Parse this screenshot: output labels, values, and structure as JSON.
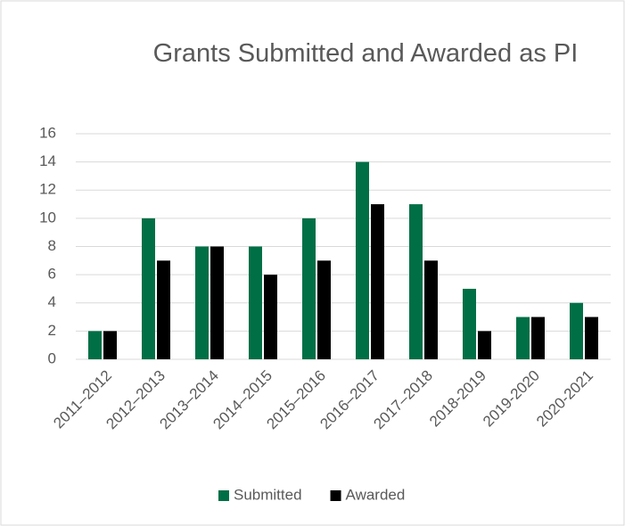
{
  "chart_data": {
    "type": "bar",
    "title": "Grants Submitted and Awarded as PI",
    "categories": [
      "2011–2012",
      "2012–2013",
      "2013–2014",
      "2014–2015",
      "2015–2016",
      "2016–2017",
      "2017–2018",
      "2018-2019",
      "2019-2020",
      "2020-2021"
    ],
    "series": [
      {
        "name": "Submitted",
        "color": "#006f46",
        "values": [
          2,
          10,
          8,
          8,
          10,
          14,
          11,
          5,
          3,
          4
        ]
      },
      {
        "name": "Awarded",
        "color": "#000000",
        "values": [
          2,
          7,
          8,
          6,
          7,
          11,
          7,
          2,
          3,
          3
        ]
      }
    ],
    "ylim": [
      0,
      16
    ],
    "yticks": [
      0,
      2,
      4,
      6,
      8,
      10,
      12,
      14,
      16
    ],
    "grid": true,
    "legend": "bottom"
  }
}
